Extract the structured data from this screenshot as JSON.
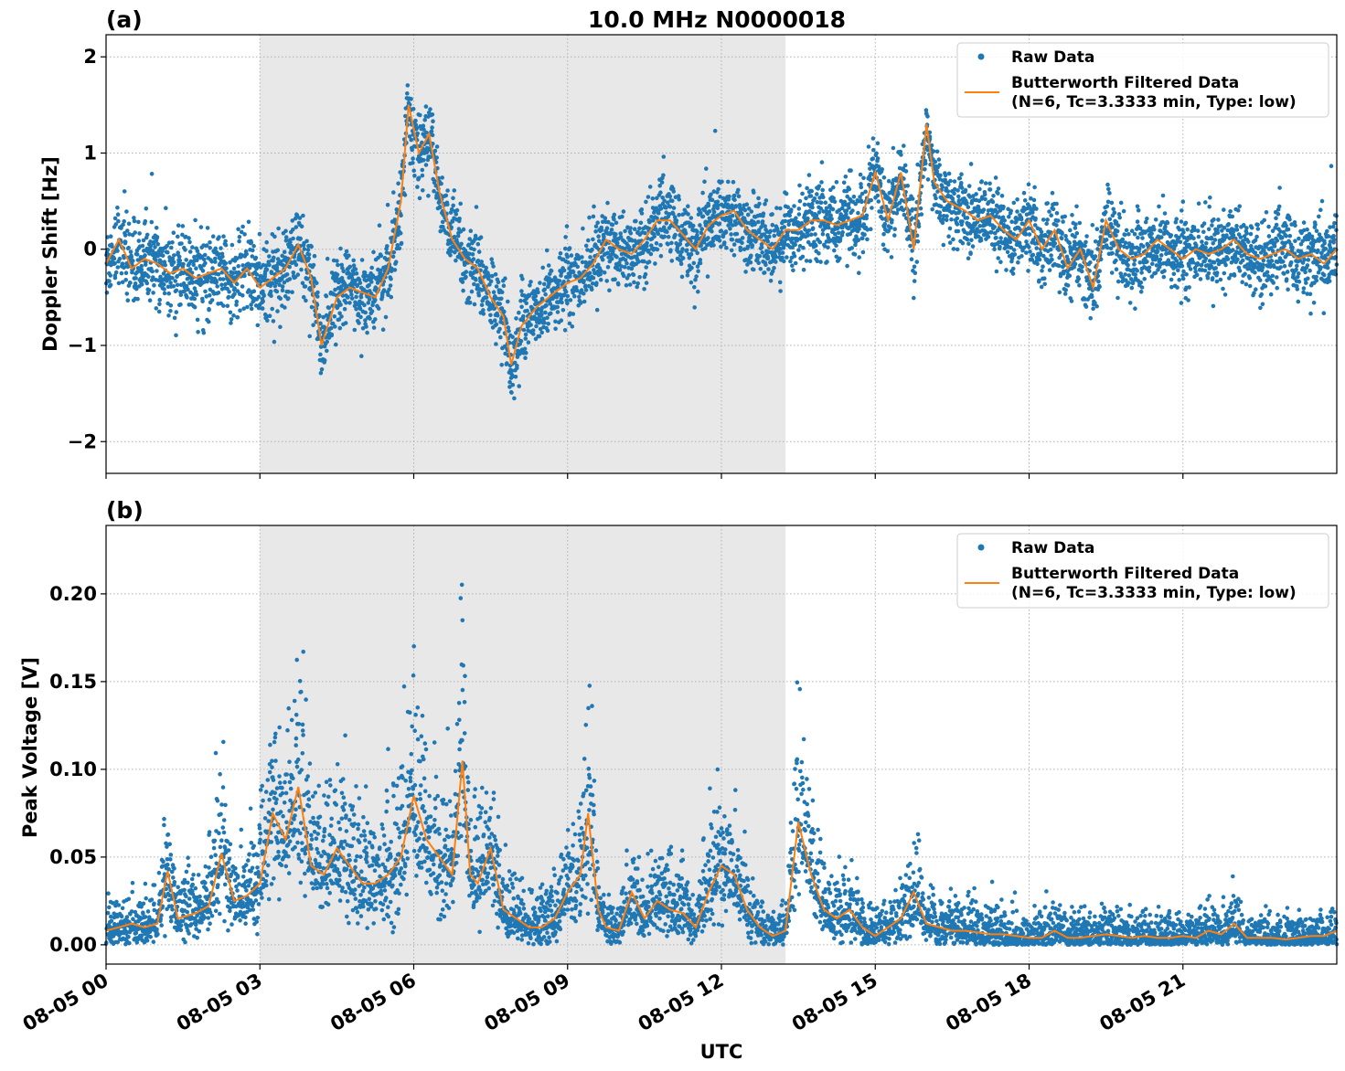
{
  "figure": {
    "title": "10.0 MHz N0000018",
    "xlabel": "UTC"
  },
  "colors": {
    "raw": "#1f77b4",
    "filtered": "#ff7f0e",
    "shade": "#e8e8e8",
    "grid": "#b0b0b0"
  },
  "legend": {
    "raw_label": "Raw Data",
    "filtered_line1": "Butterworth Filtered Data",
    "filtered_line2": "(N=6, Tc=3.3333 min, Type: low)"
  },
  "chart_data": [
    {
      "panel": "(a)",
      "type": "scatter",
      "ylabel": "Doppler Shift [Hz]",
      "xlim_hours": [
        0,
        24
      ],
      "ylim": [
        -2.33,
        2.23
      ],
      "yticks": [
        2,
        1,
        0,
        -1,
        -2
      ],
      "ytick_labels": [
        "2",
        "1",
        "0",
        "−1",
        "−2"
      ],
      "xticks": [
        "08-05 00",
        "08-05 03",
        "08-05 06",
        "08-05 09",
        "08-05 12",
        "08-05 15",
        "08-05 18",
        "08-05 21"
      ],
      "shaded_span_hours": [
        3.0,
        13.25
      ],
      "grid": true,
      "legend_position": "top-right",
      "series": [
        {
          "name": "Butterworth Filtered Data",
          "x_hours": [
            0,
            0.25,
            0.5,
            0.75,
            1.0,
            1.25,
            1.5,
            1.75,
            2.0,
            2.25,
            2.5,
            2.75,
            3.0,
            3.25,
            3.5,
            3.75,
            4.0,
            4.2,
            4.5,
            4.75,
            5.0,
            5.25,
            5.5,
            5.75,
            5.9,
            6.1,
            6.3,
            6.5,
            6.75,
            7.0,
            7.25,
            7.5,
            7.75,
            7.9,
            8.1,
            8.4,
            8.75,
            9.0,
            9.25,
            9.5,
            9.75,
            10.0,
            10.25,
            10.5,
            10.75,
            11.0,
            11.25,
            11.5,
            11.75,
            12.0,
            12.25,
            12.5,
            12.75,
            13.0,
            13.25,
            13.5,
            13.75,
            14.0,
            14.25,
            14.5,
            14.75,
            15.0,
            15.25,
            15.5,
            15.75,
            16.0,
            16.15,
            16.4,
            16.75,
            17.0,
            17.25,
            17.5,
            17.75,
            18.0,
            18.25,
            18.5,
            18.75,
            19.0,
            19.25,
            19.5,
            19.75,
            20.0,
            20.25,
            20.5,
            20.75,
            21.0,
            21.25,
            21.5,
            21.75,
            22.0,
            22.25,
            22.5,
            22.75,
            23.0,
            23.25,
            23.5,
            23.75,
            24.0
          ],
          "y": [
            -0.15,
            0.1,
            -0.2,
            -0.1,
            -0.15,
            -0.25,
            -0.2,
            -0.3,
            -0.25,
            -0.2,
            -0.35,
            -0.2,
            -0.4,
            -0.3,
            -0.2,
            0.05,
            -0.3,
            -1.0,
            -0.5,
            -0.4,
            -0.45,
            -0.5,
            -0.2,
            0.5,
            1.5,
            1.0,
            1.2,
            0.6,
            0.1,
            -0.1,
            -0.2,
            -0.5,
            -0.7,
            -1.2,
            -0.8,
            -0.6,
            -0.45,
            -0.35,
            -0.3,
            -0.15,
            0.1,
            0.0,
            -0.05,
            0.1,
            0.3,
            0.3,
            0.15,
            0.0,
            0.25,
            0.35,
            0.4,
            0.2,
            0.1,
            0.0,
            0.2,
            0.2,
            0.3,
            0.3,
            0.25,
            0.3,
            0.35,
            0.8,
            0.3,
            0.8,
            0.0,
            1.3,
            0.7,
            0.5,
            0.4,
            0.3,
            0.35,
            0.2,
            0.1,
            0.3,
            0.0,
            0.2,
            -0.2,
            0.0,
            -0.4,
            0.3,
            0.0,
            -0.1,
            -0.05,
            0.1,
            0.0,
            -0.1,
            0.0,
            -0.05,
            0.0,
            0.1,
            -0.05,
            -0.1,
            -0.05,
            0.0,
            -0.1,
            -0.05,
            -0.15,
            0.0
          ]
        }
      ]
    },
    {
      "panel": "(b)",
      "type": "scatter",
      "ylabel": "Peak Voltage [V]",
      "xlim_hours": [
        0,
        24
      ],
      "ylim": [
        -0.011,
        0.239
      ],
      "yticks": [
        0.2,
        0.15,
        0.1,
        0.05,
        0.0
      ],
      "ytick_labels": [
        "0.20",
        "0.15",
        "0.10",
        "0.05",
        "0.00"
      ],
      "xticks": [
        "08-05 00",
        "08-05 03",
        "08-05 06",
        "08-05 09",
        "08-05 12",
        "08-05 15",
        "08-05 18",
        "08-05 21"
      ],
      "shaded_span_hours": [
        3.0,
        13.25
      ],
      "grid": true,
      "legend_position": "top-right",
      "series": [
        {
          "name": "Butterworth Filtered Data",
          "x_hours": [
            0,
            0.25,
            0.5,
            0.75,
            1.0,
            1.2,
            1.4,
            1.75,
            2.0,
            2.25,
            2.5,
            2.75,
            3.0,
            3.25,
            3.5,
            3.75,
            4.0,
            4.25,
            4.5,
            4.75,
            5.0,
            5.25,
            5.5,
            5.75,
            6.0,
            6.25,
            6.5,
            6.75,
            6.95,
            7.1,
            7.25,
            7.5,
            7.75,
            8.0,
            8.25,
            8.5,
            8.75,
            9.0,
            9.25,
            9.4,
            9.6,
            9.75,
            10.0,
            10.25,
            10.5,
            10.75,
            11.0,
            11.25,
            11.5,
            11.75,
            12.0,
            12.25,
            12.5,
            12.75,
            13.0,
            13.25,
            13.5,
            13.75,
            14.0,
            14.25,
            14.5,
            14.75,
            15.0,
            15.25,
            15.5,
            15.75,
            16.0,
            16.25,
            16.5,
            16.75,
            17.0,
            17.25,
            17.5,
            17.75,
            18.0,
            18.25,
            18.5,
            18.75,
            19.0,
            19.25,
            19.5,
            19.75,
            20.0,
            20.25,
            20.5,
            20.75,
            21.0,
            21.25,
            21.5,
            21.75,
            22.0,
            22.25,
            22.5,
            22.75,
            23.0,
            23.25,
            23.5,
            23.75,
            24.0
          ],
          "y": [
            0.008,
            0.01,
            0.012,
            0.01,
            0.012,
            0.042,
            0.015,
            0.018,
            0.022,
            0.052,
            0.025,
            0.028,
            0.035,
            0.075,
            0.06,
            0.09,
            0.045,
            0.04,
            0.055,
            0.045,
            0.035,
            0.035,
            0.04,
            0.05,
            0.085,
            0.06,
            0.05,
            0.04,
            0.105,
            0.04,
            0.035,
            0.055,
            0.02,
            0.015,
            0.01,
            0.01,
            0.015,
            0.03,
            0.04,
            0.075,
            0.02,
            0.01,
            0.008,
            0.03,
            0.015,
            0.025,
            0.02,
            0.018,
            0.01,
            0.03,
            0.045,
            0.04,
            0.02,
            0.01,
            0.005,
            0.008,
            0.07,
            0.04,
            0.02,
            0.015,
            0.02,
            0.01,
            0.005,
            0.01,
            0.015,
            0.03,
            0.012,
            0.01,
            0.008,
            0.008,
            0.007,
            0.006,
            0.006,
            0.005,
            0.004,
            0.004,
            0.008,
            0.004,
            0.004,
            0.005,
            0.006,
            0.005,
            0.004,
            0.005,
            0.004,
            0.004,
            0.005,
            0.004,
            0.008,
            0.006,
            0.012,
            0.004,
            0.004,
            0.004,
            0.003,
            0.004,
            0.005,
            0.005,
            0.008
          ]
        }
      ]
    }
  ]
}
